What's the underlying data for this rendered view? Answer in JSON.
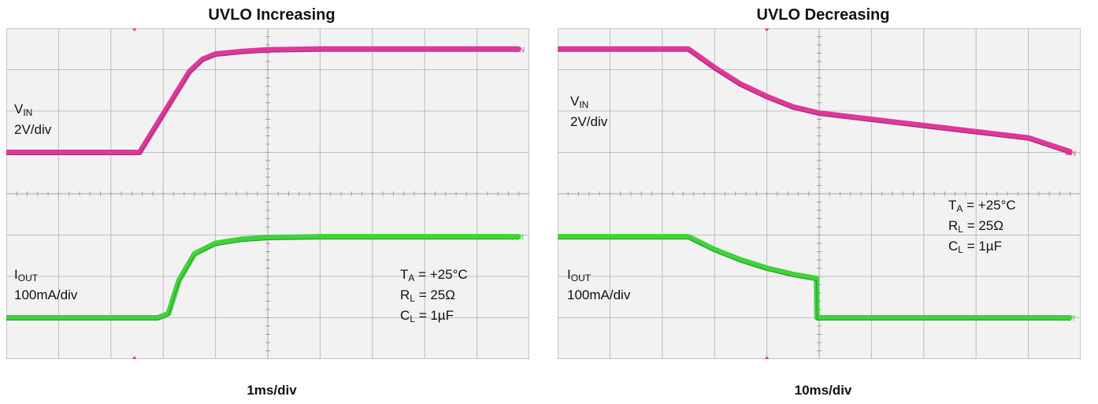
{
  "colors": {
    "vin_trace": "#e0379c",
    "iout_trace": "#3fd43a",
    "grid": "#bdbdbd",
    "screen_bg": "#f2f2f2",
    "marker": "#e05050"
  },
  "chart_data": [
    {
      "type": "line",
      "title": "UVLO Increasing",
      "timebase": "1ms/div",
      "divisions": {
        "x": 10,
        "y": 8
      },
      "series": [
        {
          "name": "VIN",
          "label": "V",
          "label_sub": "IN",
          "scale": "2V/div",
          "marker": "VIN",
          "x": [
            0,
            2.55,
            3.5,
            3.75,
            4.0,
            4.5,
            5.0,
            6.0,
            8.0,
            13.0
          ],
          "y": [
            5.0,
            5.0,
            6.95,
            7.25,
            7.38,
            7.44,
            7.48,
            7.5,
            7.5,
            7.5
          ]
        },
        {
          "name": "IOUT",
          "label": "I",
          "label_sub": "OUT",
          "scale": "100mA/div",
          "marker": "IOUT",
          "x": [
            0,
            2.9,
            3.1,
            3.3,
            3.6,
            4.0,
            4.5,
            5.0,
            6.0,
            13.0
          ],
          "y": [
            1.0,
            1.0,
            1.1,
            1.9,
            2.55,
            2.8,
            2.9,
            2.94,
            2.96,
            2.96
          ]
        }
      ],
      "conditions": [
        {
          "main": "T",
          "sub": "A",
          "rest": " = +25°C"
        },
        {
          "main": "R",
          "sub": "L",
          "rest": " = 25Ω"
        },
        {
          "main": "C",
          "sub": "L",
          "rest": " = 1µF"
        }
      ]
    },
    {
      "type": "line",
      "title": "UVLO Decreasing",
      "timebase": "10ms/div",
      "divisions": {
        "x": 10,
        "y": 8
      },
      "series": [
        {
          "name": "VIN",
          "label": "V",
          "label_sub": "IN",
          "scale": "2V/div",
          "marker": "VIN",
          "x": [
            0,
            2.5,
            3.0,
            3.5,
            4.0,
            4.5,
            5.0,
            7.0,
            9.0,
            11.0,
            11.5,
            13.0
          ],
          "y": [
            7.5,
            7.5,
            7.05,
            6.65,
            6.35,
            6.1,
            5.95,
            5.65,
            5.35,
            5.02,
            5.0,
            5.0
          ]
        },
        {
          "name": "IOUT",
          "label": "I",
          "label_sub": "OUT",
          "scale": "100mA/div",
          "marker": "IOUT",
          "x": [
            0,
            2.5,
            3.0,
            3.5,
            4.0,
            4.5,
            4.95,
            4.96,
            13.0
          ],
          "y": [
            2.96,
            2.96,
            2.65,
            2.4,
            2.2,
            2.05,
            1.95,
            1.0,
            1.0
          ]
        }
      ],
      "conditions": [
        {
          "main": "T",
          "sub": "A",
          "rest": " = +25°C"
        },
        {
          "main": "R",
          "sub": "L",
          "rest": " = 25Ω"
        },
        {
          "main": "C",
          "sub": "L",
          "rest": " = 1µF"
        }
      ]
    }
  ]
}
